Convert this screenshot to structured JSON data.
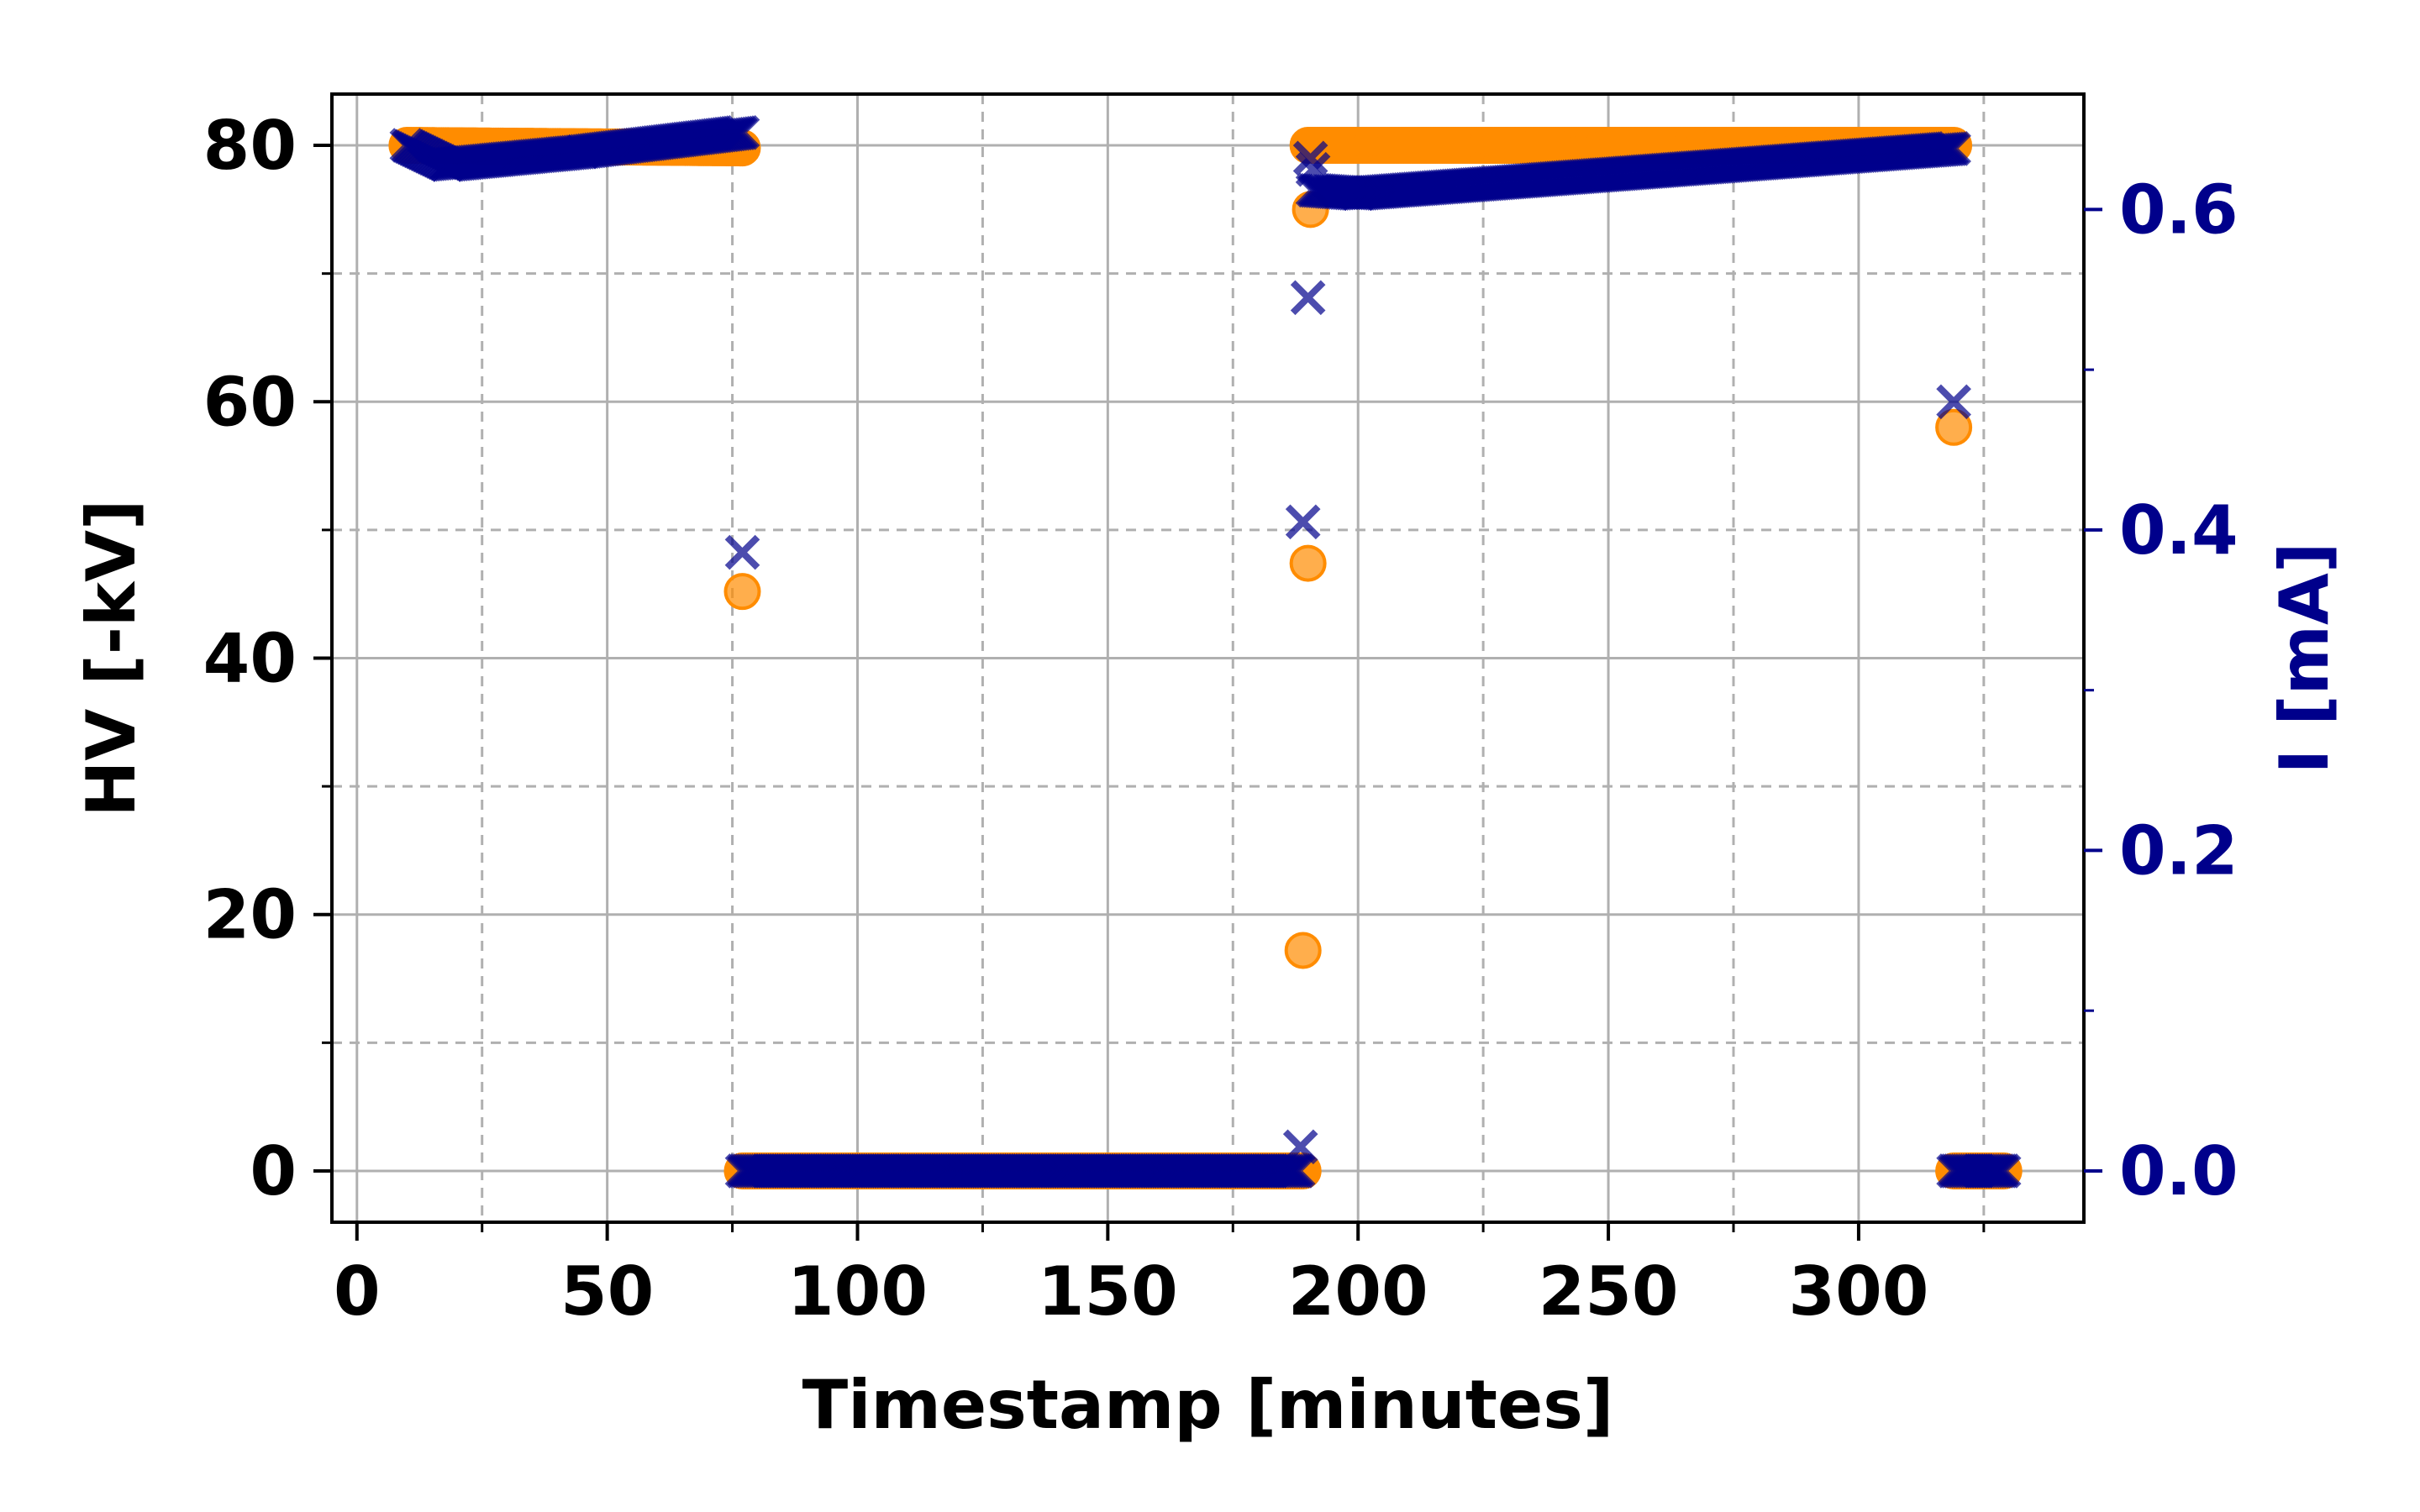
{
  "chart_data": {
    "type": "scatter",
    "xlabel": "Timestamp [minutes]",
    "ylabel_left": "HV [-kV]",
    "ylabel_right": "I [mA]",
    "xlim": [
      -5,
      345
    ],
    "ylim_left": [
      -4,
      84
    ],
    "ylim_right": [
      -0.032,
      0.672
    ],
    "x_ticks": [
      0,
      50,
      100,
      150,
      200,
      250,
      300
    ],
    "x_ticks_minor": [
      25,
      75,
      125,
      175,
      225,
      275,
      325
    ],
    "y_left_ticks": [
      0,
      20,
      40,
      60,
      80
    ],
    "y_left_ticks_minor": [
      10,
      30,
      50,
      70
    ],
    "y_right_ticks": [
      0.0,
      0.2,
      0.4,
      0.6
    ],
    "y_right_ticks_minor": [
      0.1,
      0.3,
      0.5
    ],
    "grid": true,
    "colors": {
      "hv": "#ff8c00",
      "current": "#00008b",
      "grid": "#b0b0b0",
      "axis": "#000000"
    },
    "series": [
      {
        "name": "HV",
        "axis": "left",
        "marker": "circle",
        "segments": [
          {
            "x_start": 10,
            "x_end": 77,
            "y_start": 80,
            "y_end": 79.8
          },
          {
            "x_start": 77,
            "x_end": 189,
            "y_start": 0,
            "y_end": 0
          },
          {
            "x_start": 190,
            "x_end": 319,
            "y_start": 80,
            "y_end": 80
          },
          {
            "x_start": 319,
            "x_end": 329,
            "y_start": 0,
            "y_end": 0
          }
        ],
        "points": [
          {
            "x": 77,
            "y": 45.2
          },
          {
            "x": 189,
            "y": 17.2
          },
          {
            "x": 190,
            "y": 47.4
          },
          {
            "x": 190.5,
            "y": 75
          },
          {
            "x": 319,
            "y": 58
          }
        ]
      },
      {
        "name": "I",
        "axis": "right",
        "marker": "x",
        "segments": [
          {
            "x_start": 10,
            "x_end": 18,
            "y_start": 0.64,
            "y_end": 0.628
          },
          {
            "x_start": 18,
            "x_end": 45,
            "y_start": 0.628,
            "y_end": 0.636
          },
          {
            "x_start": 45,
            "x_end": 77,
            "y_start": 0.636,
            "y_end": 0.648
          },
          {
            "x_start": 77,
            "x_end": 188,
            "y_start": 0.0,
            "y_end": 0.0
          },
          {
            "x_start": 191,
            "x_end": 200,
            "y_start": 0.612,
            "y_end": 0.61
          },
          {
            "x_start": 200,
            "x_end": 319,
            "y_start": 0.61,
            "y_end": 0.638
          },
          {
            "x_start": 319,
            "x_end": 329,
            "y_start": 0.0,
            "y_end": 0.0
          }
        ],
        "points": [
          {
            "x": 77,
            "y": 0.386
          },
          {
            "x": 188.5,
            "y": 0.015
          },
          {
            "x": 189,
            "y": 0.405
          },
          {
            "x": 190,
            "y": 0.545
          },
          {
            "x": 190.5,
            "y": 0.632
          },
          {
            "x": 191,
            "y": 0.625
          },
          {
            "x": 319,
            "y": 0.48
          }
        ]
      }
    ]
  }
}
